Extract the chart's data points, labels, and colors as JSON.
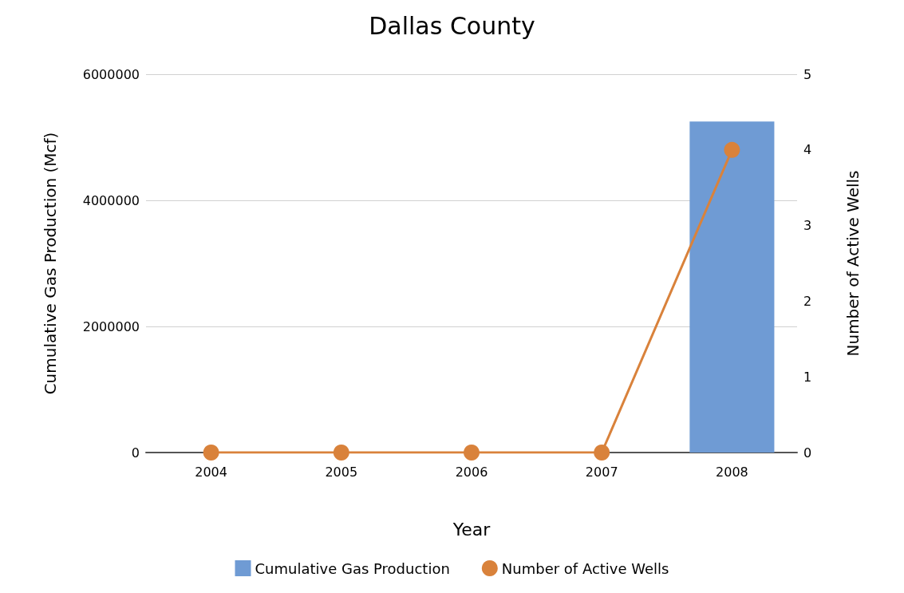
{
  "chart_data": {
    "type": "bar",
    "title": "Dallas County",
    "xlabel": "Year",
    "ylabel": "Cumulative Gas Production (Mcf)",
    "y2label": "Number of Active Wells",
    "categories": [
      "2004",
      "2005",
      "2006",
      "2007",
      "2008"
    ],
    "series": [
      {
        "name": "Cumulative Gas Production",
        "color": "#6f9bd4",
        "values": [
          0,
          0,
          0,
          0,
          5250000
        ]
      },
      {
        "name": "Number of Active Wells",
        "type": "line",
        "axis": "y2",
        "color": "#d9823b",
        "values": [
          0,
          0,
          0,
          0,
          4
        ]
      }
    ],
    "ylim": [
      0,
      6000000
    ],
    "yticks": [
      0,
      2000000,
      4000000,
      6000000
    ],
    "y2lim": [
      0,
      5
    ],
    "y2ticks": [
      0,
      1,
      2,
      3,
      4,
      5
    ],
    "grid": "y",
    "legend": "bottom",
    "marker": "circle"
  }
}
